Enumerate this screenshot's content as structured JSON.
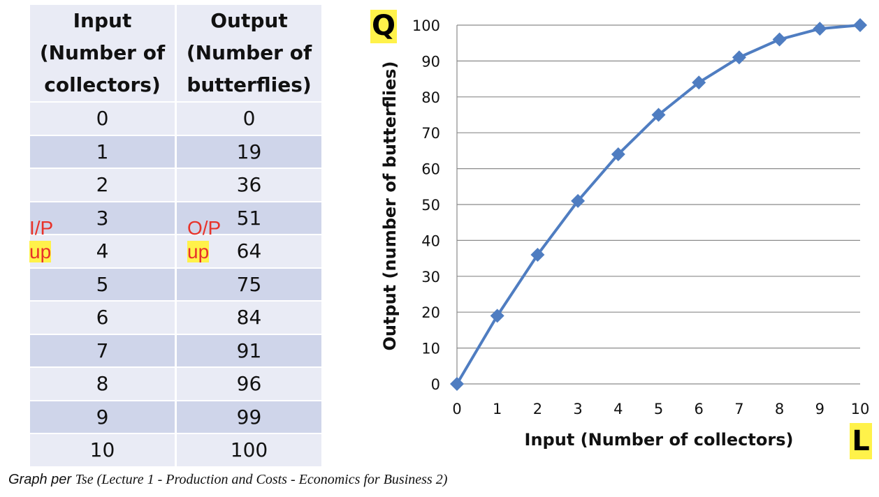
{
  "table": {
    "header_input": [
      "Input",
      "(Number of",
      "collectors)"
    ],
    "header_output": [
      "Output",
      "(Number of",
      "butterflies)"
    ],
    "rows": [
      {
        "input": "0",
        "output": "0"
      },
      {
        "input": "1",
        "output": "19"
      },
      {
        "input": "2",
        "output": "36"
      },
      {
        "input": "3",
        "output": "51"
      },
      {
        "input": "4",
        "output": "64"
      },
      {
        "input": "5",
        "output": "75"
      },
      {
        "input": "6",
        "output": "84"
      },
      {
        "input": "7",
        "output": "91"
      },
      {
        "input": "8",
        "output": "96"
      },
      {
        "input": "9",
        "output": "99"
      },
      {
        "input": "10",
        "output": "100"
      }
    ]
  },
  "annotations": {
    "input_up": [
      "I/P",
      "up"
    ],
    "output_up": [
      "O/P",
      "up"
    ],
    "q_badge": "Q",
    "l_badge": "L"
  },
  "chart_data": {
    "type": "line",
    "title": "",
    "xlabel": "Input (Number of collectors)",
    "ylabel": "Output (number of butterflies)",
    "x": [
      0,
      1,
      2,
      3,
      4,
      5,
      6,
      7,
      8,
      9,
      10
    ],
    "series": [
      {
        "name": "Output",
        "values": [
          0,
          19,
          36,
          51,
          64,
          75,
          84,
          91,
          96,
          99,
          100
        ]
      }
    ],
    "xlim": [
      0,
      10
    ],
    "ylim": [
      0,
      100
    ],
    "yticks": [
      0,
      10,
      20,
      30,
      40,
      50,
      60,
      70,
      80,
      90,
      100
    ],
    "xticks": [
      0,
      1,
      2,
      3,
      4,
      5,
      6,
      7,
      8,
      9,
      10
    ],
    "grid": true,
    "line_color": "#4f7dc1",
    "marker": "diamond"
  },
  "caption": {
    "prefix": "Graph per",
    "source": "Tse (Lecture 1 - Production and Costs - Economics for Business 2)"
  },
  "colors": {
    "highlight": "#fff24a",
    "annotation_red": "#e8322a",
    "row_light": "#e9ebf5",
    "row_dark": "#cfd5ea"
  }
}
